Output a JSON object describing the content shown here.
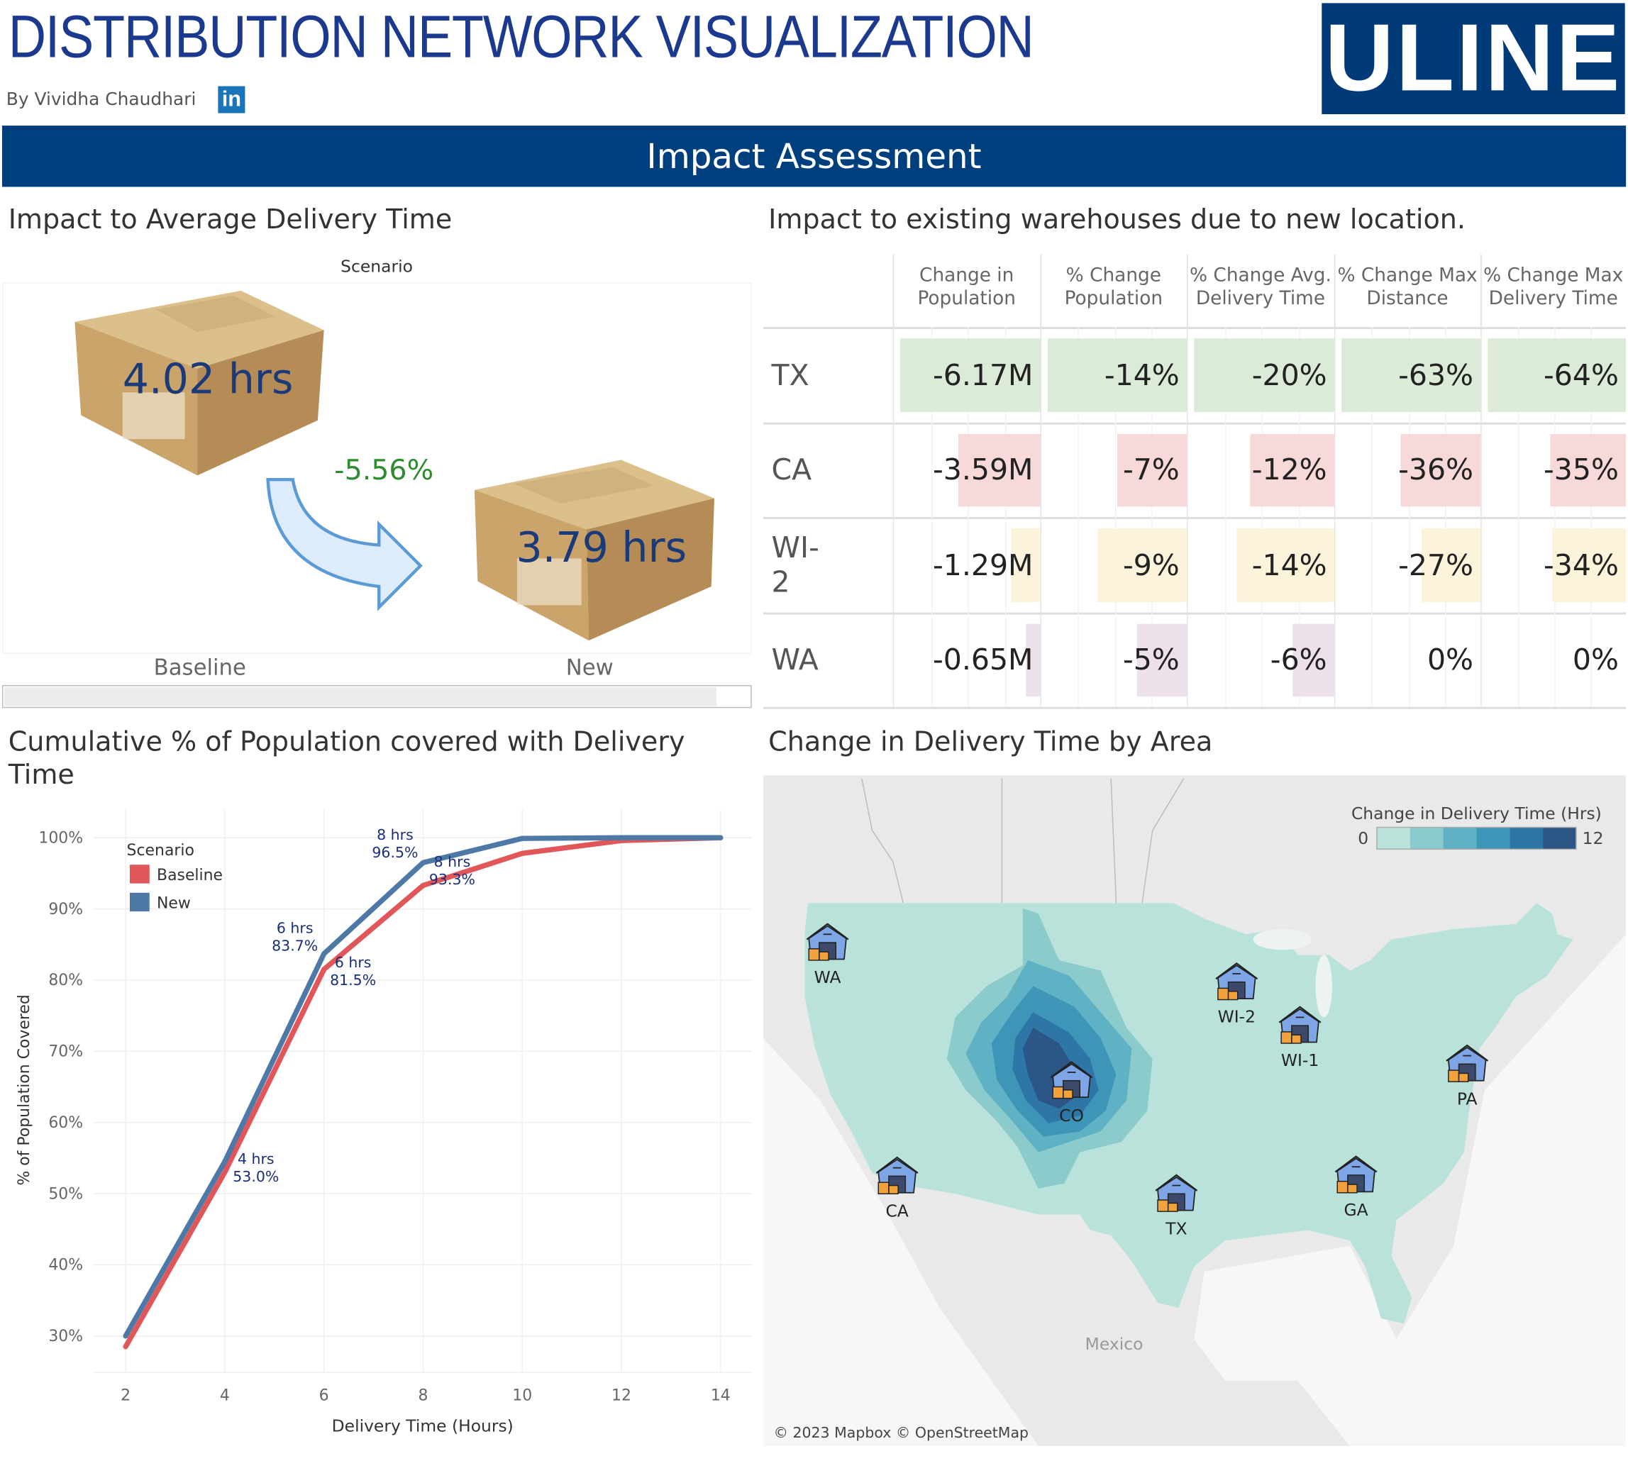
{
  "header": {
    "title": "DISTRIBUTION NETWORK VISUALIZATION",
    "byline": "By Vividha Chaudhari",
    "linkedin_icon": "in",
    "logo_text": "ULINE",
    "banner": "Impact Assessment"
  },
  "delivery_time": {
    "title": "Impact to Average Delivery Time",
    "scenario_label": "Scenario",
    "baseline_value": "4.02 hrs",
    "new_value": "3.79 hrs",
    "change": "-5.56%",
    "baseline_label": "Baseline",
    "new_label": "New",
    "change_color": "#2e8b2e"
  },
  "warehouse_table": {
    "title": "Impact to existing warehouses due to new location.",
    "columns": [
      [
        "Change in",
        "Population"
      ],
      [
        "% Change",
        "Population"
      ],
      [
        "% Change Avg.",
        "Delivery Time"
      ],
      [
        "% Change Max",
        "Distance"
      ],
      [
        "% Change Max",
        "Delivery Time"
      ]
    ],
    "rows": [
      {
        "label": "TX",
        "color": "#dcebd8",
        "cells": [
          "-6.17M",
          "-14%",
          "-20%",
          "-63%",
          "-64%"
        ],
        "values": [
          -6.17,
          -14,
          -20,
          -63,
          -64
        ]
      },
      {
        "label": "CA",
        "color": "#f8d9da",
        "cells": [
          "-3.59M",
          "-7%",
          "-12%",
          "-36%",
          "-35%"
        ],
        "values": [
          -3.59,
          -7,
          -12,
          -36,
          -35
        ]
      },
      {
        "label": "WI-2",
        "color": "#fbf3da",
        "cells": [
          "-1.29M",
          "-9%",
          "-14%",
          "-27%",
          "-34%"
        ],
        "values": [
          -1.29,
          -9,
          -14,
          -27,
          -34
        ]
      },
      {
        "label": "WA",
        "color": "#ece1eb",
        "cells": [
          "-0.65M",
          "-5%",
          "-6%",
          "0%",
          "0%"
        ],
        "values": [
          -0.65,
          -5,
          -6,
          0,
          0
        ]
      }
    ]
  },
  "coverage_chart": {
    "title_line1": "Cumulative % of Population covered with Delivery",
    "title_line2": "Time"
  },
  "chart_data": {
    "type": "line",
    "xlabel": "Delivery Time (Hours)",
    "ylabel": "% of Population Covered",
    "x": [
      2,
      4,
      6,
      8,
      10,
      12,
      14
    ],
    "xticks": [
      "2",
      "4",
      "6",
      "8",
      "10",
      "12",
      "14"
    ],
    "yticks": [
      "30%",
      "40%",
      "50%",
      "60%",
      "70%",
      "80%",
      "90%",
      "100%"
    ],
    "ylim": [
      30,
      100
    ],
    "xlim": [
      2,
      14
    ],
    "grid": true,
    "legend_title": "Scenario",
    "legend_position": "top-left",
    "series": [
      {
        "name": "Baseline",
        "color": "#e15759",
        "values": [
          28.5,
          53.0,
          81.5,
          93.3,
          97.8,
          99.6,
          100
        ]
      },
      {
        "name": "New",
        "color": "#4e79a7",
        "values": [
          30.0,
          54.5,
          83.7,
          96.5,
          99.9,
          100,
          100
        ]
      }
    ],
    "annotations": [
      {
        "series": "Baseline",
        "x": 4,
        "line1": "4 hrs",
        "line2": "53.0%"
      },
      {
        "series": "New",
        "x": 6,
        "line1": "6 hrs",
        "line2": "83.7%"
      },
      {
        "series": "Baseline",
        "x": 6,
        "line1": "6 hrs",
        "line2": "81.5%"
      },
      {
        "series": "New",
        "x": 8,
        "line1": "8 hrs",
        "line2": "96.5%"
      },
      {
        "series": "Baseline",
        "x": 8,
        "line1": "8 hrs",
        "line2": "93.3%"
      }
    ]
  },
  "map": {
    "title": "Change in Delivery Time by Area",
    "legend_title": "Change in Delivery Time (Hrs)",
    "legend_min": "0",
    "legend_max": "12",
    "legend_colors": [
      "#b9e3da",
      "#8ccbcc",
      "#5fb2c4",
      "#3d95b8",
      "#2e76a5",
      "#2b5585"
    ],
    "country_label": "Mexico",
    "attribution": "© 2023 Mapbox © OpenStreetMap",
    "warehouses": [
      "WA",
      "WI-2",
      "WI-1",
      "CO",
      "PA",
      "CA",
      "TX",
      "GA"
    ],
    "warehouse_icon": "warehouse-icon"
  }
}
